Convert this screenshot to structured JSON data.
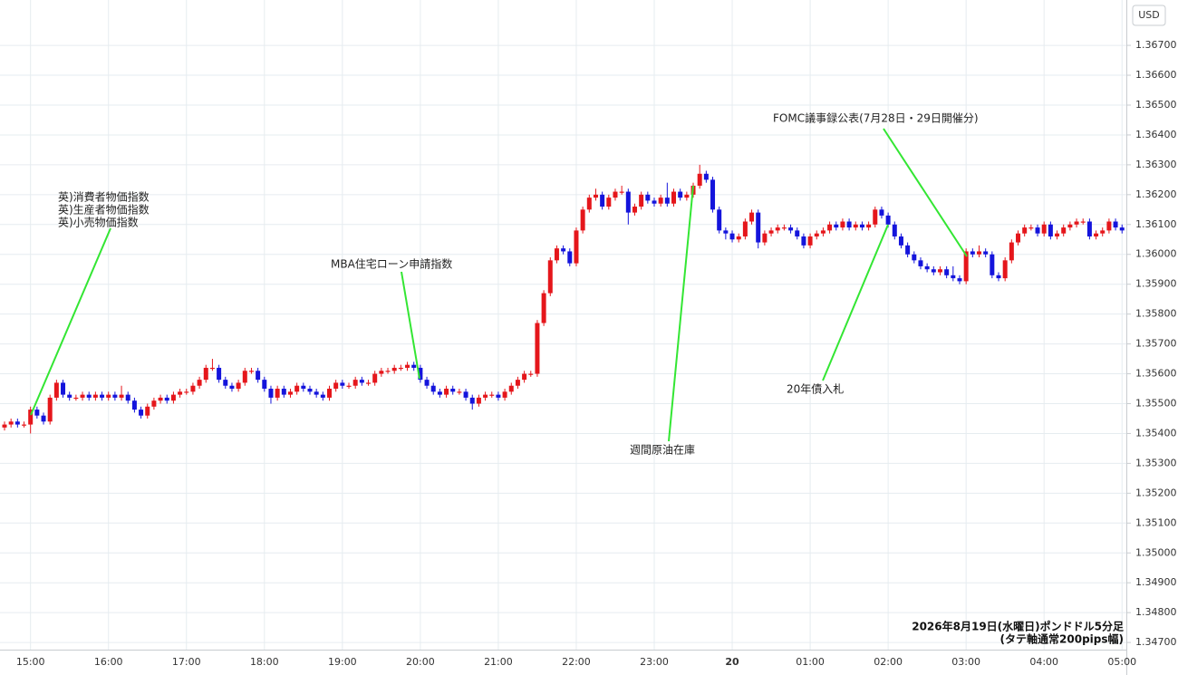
{
  "chart_data": {
    "type": "candlestick",
    "currency": "USD",
    "up_color": "#e5161b",
    "down_color": "#1414dc",
    "annotation_color": "#33e633",
    "grid": true,
    "ylim": [
      1.34673,
      1.36852
    ],
    "yticks": [
      {
        "value": 1.347,
        "label": "1.34700"
      },
      {
        "value": 1.348,
        "label": "1.34800"
      },
      {
        "value": 1.349,
        "label": "1.34900"
      },
      {
        "value": 1.35,
        "label": "1.35000"
      },
      {
        "value": 1.351,
        "label": "1.35100"
      },
      {
        "value": 1.352,
        "label": "1.35200"
      },
      {
        "value": 1.353,
        "label": "1.35300"
      },
      {
        "value": 1.354,
        "label": "1.35400"
      },
      {
        "value": 1.355,
        "label": "1.35500"
      },
      {
        "value": 1.356,
        "label": "1.35600"
      },
      {
        "value": 1.357,
        "label": "1.35700"
      },
      {
        "value": 1.358,
        "label": "1.35800"
      },
      {
        "value": 1.359,
        "label": "1.35900"
      },
      {
        "value": 1.36,
        "label": "1.36000"
      },
      {
        "value": 1.361,
        "label": "1.36100"
      },
      {
        "value": 1.362,
        "label": "1.36200"
      },
      {
        "value": 1.363,
        "label": "1.36300"
      },
      {
        "value": 1.364,
        "label": "1.36400"
      },
      {
        "value": 1.365,
        "label": "1.36500"
      },
      {
        "value": 1.366,
        "label": "1.36600"
      },
      {
        "value": 1.367,
        "label": "1.36700"
      }
    ],
    "categories": [
      null,
      null,
      null,
      null,
      "15:00",
      null,
      null,
      null,
      null,
      null,
      null,
      null,
      null,
      null,
      null,
      null,
      "16:00",
      null,
      null,
      null,
      null,
      null,
      null,
      null,
      null,
      null,
      null,
      null,
      "17:00",
      null,
      null,
      null,
      null,
      null,
      null,
      null,
      null,
      null,
      null,
      null,
      "18:00",
      null,
      null,
      null,
      null,
      null,
      null,
      null,
      null,
      null,
      null,
      null,
      "19:00",
      null,
      null,
      null,
      null,
      null,
      null,
      null,
      null,
      null,
      null,
      null,
      "20:00",
      null,
      null,
      null,
      null,
      null,
      null,
      null,
      null,
      null,
      null,
      null,
      "21:00",
      null,
      null,
      null,
      null,
      null,
      null,
      null,
      null,
      null,
      null,
      null,
      "22:00",
      null,
      null,
      null,
      null,
      null,
      null,
      null,
      null,
      null,
      null,
      null,
      "23:00",
      null,
      null,
      null,
      null,
      null,
      null,
      null,
      null,
      null,
      null,
      null,
      "20",
      null,
      null,
      null,
      null,
      null,
      null,
      null,
      null,
      null,
      null,
      null,
      "01:00",
      null,
      null,
      null,
      null,
      null,
      null,
      null,
      null,
      null,
      null,
      null,
      "02:00",
      null,
      null,
      null,
      null,
      null,
      null,
      null,
      null,
      null,
      null,
      null,
      "03:00",
      null,
      null,
      null,
      null,
      null,
      null,
      null,
      null,
      null,
      null,
      null,
      "04:00",
      null,
      null,
      null,
      null,
      null,
      null,
      null,
      null,
      null,
      null,
      null,
      "05:00"
    ],
    "open": [
      1.3542,
      1.3543,
      1.3544,
      1.3543,
      1.3543,
      1.3548,
      1.3546,
      1.3544,
      1.3552,
      1.3557,
      1.3553,
      1.3552,
      1.3552,
      1.3553,
      1.3552,
      1.3553,
      1.3552,
      1.3553,
      1.3552,
      1.3553,
      1.3551,
      1.3548,
      1.3546,
      1.3549,
      1.3551,
      1.3552,
      1.3551,
      1.3553,
      1.3554,
      1.3554,
      1.3556,
      1.3558,
      1.3562,
      1.3562,
      1.3558,
      1.3556,
      1.3555,
      1.3557,
      1.3561,
      1.3561,
      1.3558,
      1.3555,
      1.3552,
      1.3555,
      1.3553,
      1.3554,
      1.3556,
      1.3555,
      1.3554,
      1.3553,
      1.3552,
      1.3555,
      1.3557,
      1.3556,
      1.3556,
      1.3558,
      1.3557,
      1.3557,
      1.356,
      1.3561,
      1.3561,
      1.3562,
      1.3562,
      1.3563,
      1.3562,
      1.3558,
      1.3556,
      1.3554,
      1.3553,
      1.3555,
      1.3554,
      1.3554,
      1.3552,
      1.355,
      1.3552,
      1.3553,
      1.3553,
      1.3552,
      1.3554,
      1.3556,
      1.3558,
      1.356,
      1.356,
      1.3577,
      1.3587,
      1.3598,
      1.3602,
      1.3601,
      1.3597,
      1.3608,
      1.3615,
      1.3619,
      1.362,
      1.3616,
      1.3619,
      1.3621,
      1.3621,
      1.3614,
      1.3616,
      1.362,
      1.3618,
      1.3617,
      1.3619,
      1.3617,
      1.3621,
      1.3619,
      1.362,
      1.3623,
      1.3627,
      1.3625,
      1.3615,
      1.3608,
      1.3607,
      1.3605,
      1.3606,
      1.3611,
      1.3614,
      1.3604,
      1.3607,
      1.3608,
      1.3609,
      1.3609,
      1.3608,
      1.3606,
      1.3603,
      1.3606,
      1.3607,
      1.3608,
      1.361,
      1.3609,
      1.3611,
      1.3609,
      1.361,
      1.3609,
      1.361,
      1.3615,
      1.3613,
      1.361,
      1.3606,
      1.3603,
      1.36,
      1.3598,
      1.3596,
      1.3595,
      1.3594,
      1.3595,
      1.3593,
      1.3592,
      1.3591,
      1.3601,
      1.36,
      1.3601,
      1.36,
      1.3593,
      1.3592,
      1.3598,
      1.3604,
      1.3607,
      1.3609,
      1.3609,
      1.3607,
      1.361,
      1.3606,
      1.3607,
      1.3609,
      1.361,
      1.3611,
      1.3611,
      1.3606,
      1.3607,
      1.3608,
      1.3611,
      1.3609
    ],
    "high": [
      1.3544,
      1.3545,
      1.3545,
      1.3544,
      1.3549,
      1.3549,
      1.3547,
      1.3553,
      1.3558,
      1.3558,
      1.3554,
      1.3553,
      1.3554,
      1.3554,
      1.3554,
      1.3554,
      1.3554,
      1.3554,
      1.3556,
      1.3554,
      1.3552,
      1.3549,
      1.355,
      1.3552,
      1.3553,
      1.3553,
      1.3554,
      1.3555,
      1.3555,
      1.3557,
      1.3559,
      1.3563,
      1.3565,
      1.3563,
      1.3559,
      1.3557,
      1.3558,
      1.3562,
      1.3562,
      1.3562,
      1.3559,
      1.3556,
      1.3556,
      1.3556,
      1.3555,
      1.3557,
      1.3557,
      1.3556,
      1.3555,
      1.3554,
      1.3556,
      1.3558,
      1.3558,
      1.3557,
      1.3559,
      1.3559,
      1.3558,
      1.3561,
      1.3562,
      1.3562,
      1.3563,
      1.3563,
      1.3564,
      1.3564,
      1.3563,
      1.3559,
      1.3557,
      1.3555,
      1.3556,
      1.3556,
      1.3555,
      1.3555,
      1.3553,
      1.3553,
      1.3554,
      1.3554,
      1.3554,
      1.3555,
      1.3557,
      1.3559,
      1.3561,
      1.3561,
      1.3578,
      1.3588,
      1.3599,
      1.3603,
      1.3603,
      1.3602,
      1.3609,
      1.3616,
      1.362,
      1.3622,
      1.3621,
      1.362,
      1.3622,
      1.3623,
      1.3622,
      1.3617,
      1.3621,
      1.3621,
      1.3619,
      1.362,
      1.3624,
      1.3622,
      1.3622,
      1.3621,
      1.3624,
      1.363,
      1.3628,
      1.3626,
      1.3616,
      1.3609,
      1.3608,
      1.3607,
      1.3612,
      1.3615,
      1.3615,
      1.3608,
      1.3609,
      1.361,
      1.361,
      1.361,
      1.3609,
      1.3607,
      1.3607,
      1.3608,
      1.3609,
      1.3611,
      1.3611,
      1.3612,
      1.3612,
      1.3611,
      1.3611,
      1.3611,
      1.3616,
      1.3616,
      1.3614,
      1.3611,
      1.3607,
      1.3604,
      1.3601,
      1.3599,
      1.3597,
      1.3596,
      1.3596,
      1.3596,
      1.3596,
      1.3593,
      1.3602,
      1.3602,
      1.3603,
      1.3602,
      1.3601,
      1.3594,
      1.3599,
      1.3605,
      1.3608,
      1.361,
      1.361,
      1.361,
      1.3611,
      1.3611,
      1.3608,
      1.361,
      1.3611,
      1.3612,
      1.3612,
      1.3612,
      1.3608,
      1.3609,
      1.3612,
      1.3612,
      1.361
    ],
    "low": [
      1.3541,
      1.3542,
      1.3542,
      1.3542,
      1.354,
      1.3545,
      1.3543,
      1.3543,
      1.3551,
      1.3552,
      1.3551,
      1.3551,
      1.3551,
      1.3551,
      1.3551,
      1.3551,
      1.3551,
      1.3551,
      1.3551,
      1.355,
      1.3547,
      1.3545,
      1.3545,
      1.3548,
      1.355,
      1.355,
      1.355,
      1.3552,
      1.3553,
      1.3553,
      1.3555,
      1.3557,
      1.3561,
      1.3557,
      1.3555,
      1.3554,
      1.3554,
      1.3556,
      1.356,
      1.3557,
      1.3554,
      1.355,
      1.3551,
      1.3552,
      1.3552,
      1.3553,
      1.3554,
      1.3553,
      1.3552,
      1.3551,
      1.3551,
      1.3554,
      1.3555,
      1.3555,
      1.3555,
      1.3556,
      1.3556,
      1.3556,
      1.3559,
      1.356,
      1.356,
      1.3561,
      1.3561,
      1.3561,
      1.3557,
      1.3555,
      1.3553,
      1.3552,
      1.3552,
      1.3553,
      1.3553,
      1.3551,
      1.3548,
      1.3549,
      1.3551,
      1.3552,
      1.3551,
      1.3551,
      1.3553,
      1.3555,
      1.3557,
      1.3559,
      1.3559,
      1.3576,
      1.3586,
      1.3597,
      1.36,
      1.3596,
      1.3596,
      1.3607,
      1.3614,
      1.3618,
      1.3615,
      1.3615,
      1.3618,
      1.362,
      1.361,
      1.3613,
      1.3615,
      1.3617,
      1.3616,
      1.3616,
      1.3616,
      1.3616,
      1.3618,
      1.3618,
      1.3619,
      1.3622,
      1.3624,
      1.3614,
      1.3607,
      1.3605,
      1.3604,
      1.3604,
      1.3605,
      1.361,
      1.3602,
      1.3603,
      1.3606,
      1.3607,
      1.3608,
      1.3607,
      1.3605,
      1.3602,
      1.3602,
      1.3605,
      1.3606,
      1.3607,
      1.3608,
      1.3608,
      1.3608,
      1.3608,
      1.3608,
      1.3608,
      1.3609,
      1.3612,
      1.3609,
      1.3605,
      1.3602,
      1.3599,
      1.3597,
      1.3595,
      1.3594,
      1.3593,
      1.3593,
      1.3592,
      1.3591,
      1.359,
      1.359,
      1.3599,
      1.3599,
      1.3599,
      1.3592,
      1.3591,
      1.3591,
      1.3597,
      1.3603,
      1.3606,
      1.3608,
      1.3606,
      1.3606,
      1.3605,
      1.3605,
      1.3606,
      1.3608,
      1.3609,
      1.361,
      1.3605,
      1.3605,
      1.3606,
      1.3607,
      1.3608,
      1.3607
    ],
    "close": [
      1.3543,
      1.3544,
      1.3543,
      1.3543,
      1.3548,
      1.3546,
      1.3544,
      1.3552,
      1.3557,
      1.3553,
      1.3552,
      1.3552,
      1.3553,
      1.3552,
      1.3553,
      1.3552,
      1.3553,
      1.3552,
      1.3553,
      1.3551,
      1.3548,
      1.3546,
      1.3549,
      1.3551,
      1.3552,
      1.3551,
      1.3553,
      1.3554,
      1.3554,
      1.3556,
      1.3558,
      1.3562,
      1.3562,
      1.3558,
      1.3556,
      1.3555,
      1.3557,
      1.3561,
      1.3561,
      1.3558,
      1.3555,
      1.3552,
      1.3555,
      1.3553,
      1.3554,
      1.3556,
      1.3555,
      1.3554,
      1.3553,
      1.3552,
      1.3555,
      1.3557,
      1.3556,
      1.3556,
      1.3558,
      1.3557,
      1.3557,
      1.356,
      1.3561,
      1.3561,
      1.3562,
      1.3562,
      1.3563,
      1.3562,
      1.3558,
      1.3556,
      1.3554,
      1.3553,
      1.3555,
      1.3554,
      1.3554,
      1.3552,
      1.355,
      1.3552,
      1.3553,
      1.3553,
      1.3552,
      1.3554,
      1.3556,
      1.3558,
      1.356,
      1.356,
      1.3577,
      1.3587,
      1.3598,
      1.3602,
      1.3601,
      1.3597,
      1.3608,
      1.3615,
      1.3619,
      1.362,
      1.3616,
      1.3619,
      1.3621,
      1.3621,
      1.3614,
      1.3616,
      1.362,
      1.3618,
      1.3617,
      1.3619,
      1.3617,
      1.3621,
      1.3619,
      1.362,
      1.3623,
      1.3627,
      1.3625,
      1.3615,
      1.3608,
      1.3607,
      1.3605,
      1.3606,
      1.3611,
      1.3614,
      1.3604,
      1.3607,
      1.3608,
      1.3609,
      1.3609,
      1.3608,
      1.3606,
      1.3603,
      1.3606,
      1.3607,
      1.3608,
      1.361,
      1.3609,
      1.3611,
      1.3609,
      1.361,
      1.3609,
      1.361,
      1.3615,
      1.3613,
      1.361,
      1.3606,
      1.3603,
      1.36,
      1.3598,
      1.3596,
      1.3595,
      1.3594,
      1.3595,
      1.3593,
      1.3592,
      1.3591,
      1.3601,
      1.36,
      1.3601,
      1.36,
      1.3593,
      1.3592,
      1.3598,
      1.3604,
      1.3607,
      1.3609,
      1.3609,
      1.3607,
      1.361,
      1.3606,
      1.3607,
      1.3609,
      1.361,
      1.3611,
      1.3611,
      1.3606,
      1.3607,
      1.3608,
      1.3611,
      1.3609,
      1.3608
    ],
    "annotations": [
      {
        "lines": [
          "英)消費者物価指数",
          "英)生産者物価指数",
          "英)小売物価指数"
        ]
      },
      {
        "lines": [
          "MBA住宅ローン申請指数"
        ]
      },
      {
        "lines": [
          "週間原油在庫"
        ]
      },
      {
        "lines": [
          "FOMC議事録公表(7月28日・29日開催分)"
        ]
      },
      {
        "lines": [
          "20年債入札"
        ]
      }
    ],
    "note": [
      "2026年8月19日(水曜日)ポンドドル5分足",
      "(タテ軸通常200pips幅)"
    ]
  }
}
